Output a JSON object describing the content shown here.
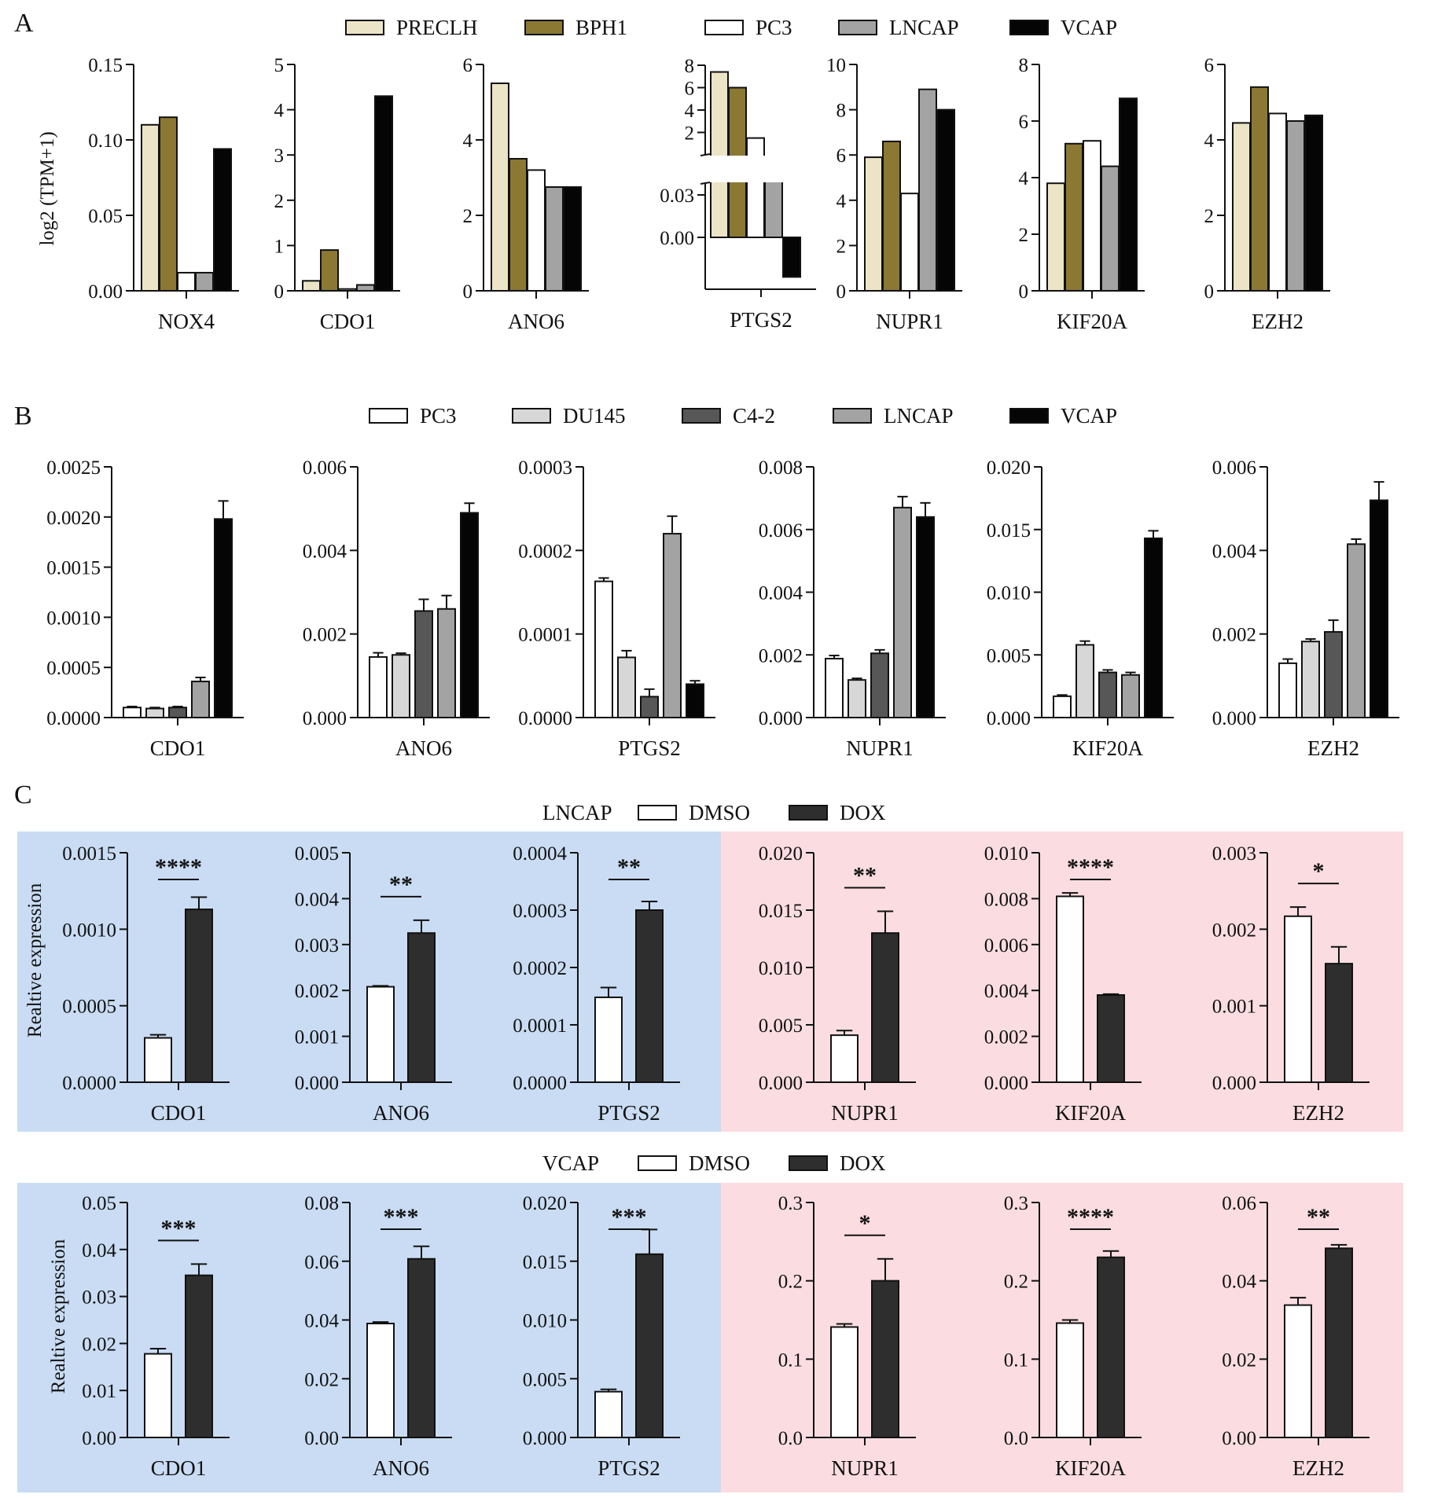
{
  "figure": {
    "panel_letters": [
      "A",
      "B",
      "C"
    ],
    "colors": {
      "PRECLH": "#ece4c6",
      "BPH1": "#8b7833",
      "PC3": "#ffffff",
      "DU145": "#d7d7d7",
      "C4-2": "#575757",
      "LNCAP": "#a3a3a3",
      "VCAP": "#050505",
      "DMSO": "#ffffff",
      "DOX": "#2e2e2e",
      "blue_bg": "#c9dcf3",
      "pink_bg": "#fbdde1"
    }
  },
  "chart_data": [
    {
      "panel": "A",
      "type": "bar",
      "legend": [
        "PRECLH",
        "BPH1",
        "PC3",
        "LNCAP",
        "VCAP"
      ],
      "ylabel": "log2 (TPM+1)",
      "charts": [
        {
          "name": "NOX4",
          "ylim": [
            0,
            0.15
          ],
          "ticks": [
            "0.00",
            "0.05",
            "0.10",
            "0.15"
          ],
          "tick_values": [
            0,
            0.05,
            0.1,
            0.15
          ],
          "values": [
            0.11,
            0.115,
            0.012,
            0.012,
            0.094
          ]
        },
        {
          "name": "CDO1",
          "ylim": [
            0,
            5
          ],
          "ticks": [
            "0",
            "1",
            "2",
            "3",
            "4",
            "5"
          ],
          "tick_values": [
            0,
            1,
            2,
            3,
            4,
            5
          ],
          "values": [
            0.22,
            0.9,
            0.04,
            0.13,
            4.3
          ]
        },
        {
          "name": "ANO6",
          "ylim": [
            0,
            6
          ],
          "ticks": [
            "0",
            "2",
            "4",
            "6"
          ],
          "tick_values": [
            0,
            2,
            4,
            6
          ],
          "values": [
            5.5,
            3.5,
            3.2,
            2.75,
            2.75
          ]
        },
        {
          "name": "PTGS2",
          "broken_axis": true,
          "upper_ticks": [
            "2",
            "4",
            "6",
            "8"
          ],
          "upper_tick_values": [
            2,
            4,
            6,
            8
          ],
          "lower_ticks": [
            "0.00",
            "0.03"
          ],
          "lower_tick_values": [
            0,
            0.03
          ],
          "values": [
            7.4,
            6.0,
            1.5,
            0.04,
            -0.028
          ]
        },
        {
          "name": "NUPR1",
          "ylim": [
            0,
            10
          ],
          "ticks": [
            "0",
            "2",
            "4",
            "6",
            "8",
            "10"
          ],
          "tick_values": [
            0,
            2,
            4,
            6,
            8,
            10
          ],
          "values": [
            5.9,
            6.6,
            4.3,
            8.9,
            8.0
          ]
        },
        {
          "name": "KIF20A",
          "ylim": [
            0,
            8
          ],
          "ticks": [
            "0",
            "2",
            "4",
            "6",
            "8"
          ],
          "tick_values": [
            0,
            2,
            4,
            6,
            8
          ],
          "values": [
            3.8,
            5.2,
            5.3,
            4.4,
            6.8
          ]
        },
        {
          "name": "EZH2",
          "ylim": [
            0,
            6
          ],
          "ticks": [
            "0",
            "2",
            "4",
            "6"
          ],
          "tick_values": [
            0,
            2,
            4,
            6
          ],
          "values": [
            4.45,
            5.4,
            4.7,
            4.5,
            4.65
          ]
        }
      ]
    },
    {
      "panel": "B",
      "type": "bar",
      "legend": [
        "PC3",
        "DU145",
        "C4-2",
        "LNCAP",
        "VCAP"
      ],
      "charts": [
        {
          "name": "CDO1",
          "ylim": [
            0,
            0.0025
          ],
          "ticks": [
            "0.0000",
            "0.0005",
            "0.0010",
            "0.0015",
            "0.0020",
            "0.0025"
          ],
          "tick_values": [
            0,
            0.0005,
            0.001,
            0.0015,
            0.002,
            0.0025
          ],
          "values": [
            0.0001,
            9e-05,
            0.0001,
            0.00036,
            0.00198
          ],
          "errors": [
            1e-05,
            1e-05,
            1e-05,
            4e-05,
            0.00018
          ]
        },
        {
          "name": "ANO6",
          "ylim": [
            0,
            0.006
          ],
          "ticks": [
            "0.000",
            "0.002",
            "0.004",
            "0.006"
          ],
          "tick_values": [
            0,
            0.002,
            0.004,
            0.006
          ],
          "values": [
            0.00145,
            0.0015,
            0.00255,
            0.0026,
            0.0049
          ],
          "errors": [
            0.0001,
            4e-05,
            0.00028,
            0.00032,
            0.00023
          ]
        },
        {
          "name": "PTGS2",
          "ylim": [
            0,
            0.0003
          ],
          "ticks": [
            "0.0000",
            "0.0001",
            "0.0002",
            "0.0003"
          ],
          "tick_values": [
            0,
            0.0001,
            0.0002,
            0.0003
          ],
          "values": [
            0.000163,
            7.2e-05,
            2.5e-05,
            0.00022,
            4e-05
          ],
          "errors": [
            4e-06,
            8e-06,
            9e-06,
            2.1e-05,
            4e-06
          ]
        },
        {
          "name": "NUPR1",
          "ylim": [
            0,
            0.008
          ],
          "ticks": [
            "0.000",
            "0.002",
            "0.004",
            "0.006",
            "0.008"
          ],
          "tick_values": [
            0,
            0.002,
            0.004,
            0.006,
            0.008
          ],
          "values": [
            0.00188,
            0.0012,
            0.00205,
            0.0067,
            0.0064
          ],
          "errors": [
            0.0001,
            5e-05,
            0.00011,
            0.00035,
            0.00045
          ]
        },
        {
          "name": "KIF20A",
          "ylim": [
            0,
            0.02
          ],
          "ticks": [
            "0.000",
            "0.005",
            "0.010",
            "0.015",
            "0.020"
          ],
          "tick_values": [
            0,
            0.005,
            0.01,
            0.015,
            0.02
          ],
          "values": [
            0.0017,
            0.0058,
            0.0036,
            0.0034,
            0.0143
          ],
          "errors": [
            0.0001,
            0.0003,
            0.0002,
            0.0002,
            0.0006
          ]
        },
        {
          "name": "EZH2",
          "ylim": [
            0,
            0.006
          ],
          "ticks": [
            "0.000",
            "0.002",
            "0.004",
            "0.006"
          ],
          "tick_values": [
            0,
            0.002,
            0.004,
            0.006
          ],
          "values": [
            0.0013,
            0.00182,
            0.00205,
            0.00415,
            0.0052
          ],
          "errors": [
            0.0001,
            6e-05,
            0.00028,
            0.00012,
            0.00044
          ]
        }
      ]
    },
    {
      "panel": "C-LNCAP",
      "type": "bar",
      "cell_line": "LNCAP",
      "legend": [
        "DMSO",
        "DOX"
      ],
      "ylabel": "Realtive expression",
      "charts": [
        {
          "name": "CDO1",
          "ylim": [
            0,
            0.0015
          ],
          "ticks": [
            "0.0000",
            "0.0005",
            "0.0010",
            "0.0015"
          ],
          "tick_values": [
            0,
            0.0005,
            0.001,
            0.0015
          ],
          "values": [
            0.00029,
            0.00113
          ],
          "errors": [
            2e-05,
            8e-05
          ],
          "significance": "****"
        },
        {
          "name": "ANO6",
          "ylim": [
            0,
            0.005
          ],
          "ticks": [
            "0.000",
            "0.001",
            "0.002",
            "0.003",
            "0.004",
            "0.005"
          ],
          "tick_values": [
            0,
            0.001,
            0.002,
            0.003,
            0.004,
            0.005
          ],
          "values": [
            0.00208,
            0.00325
          ],
          "errors": [
            2e-05,
            0.00028
          ],
          "significance": "**"
        },
        {
          "name": "PTGS2",
          "ylim": [
            0,
            0.0004
          ],
          "ticks": [
            "0.0000",
            "0.0001",
            "0.0002",
            "0.0003",
            "0.0004"
          ],
          "tick_values": [
            0,
            0.0001,
            0.0002,
            0.0003,
            0.0004
          ],
          "values": [
            0.000148,
            0.0003
          ],
          "errors": [
            1.7e-05,
            1.5e-05
          ],
          "significance": "**"
        },
        {
          "name": "NUPR1",
          "ylim": [
            0,
            0.02
          ],
          "ticks": [
            "0.000",
            "0.005",
            "0.010",
            "0.015",
            "0.020"
          ],
          "tick_values": [
            0,
            0.005,
            0.01,
            0.015,
            0.02
          ],
          "values": [
            0.0041,
            0.013
          ],
          "errors": [
            0.0004,
            0.0019
          ],
          "significance": "**"
        },
        {
          "name": "KIF20A",
          "ylim": [
            0,
            0.01
          ],
          "ticks": [
            "0.000",
            "0.002",
            "0.004",
            "0.006",
            "0.008",
            "0.010"
          ],
          "tick_values": [
            0,
            0.002,
            0.004,
            0.006,
            0.008,
            0.01
          ],
          "values": [
            0.0081,
            0.0038
          ],
          "errors": [
            0.00015,
            4e-05
          ],
          "significance": "****"
        },
        {
          "name": "EZH2",
          "ylim": [
            0,
            0.003
          ],
          "ticks": [
            "0.000",
            "0.001",
            "0.002",
            "0.003"
          ],
          "tick_values": [
            0,
            0.001,
            0.002,
            0.003
          ],
          "values": [
            0.00217,
            0.00155
          ],
          "errors": [
            0.00012,
            0.00022
          ],
          "significance": "*"
        }
      ]
    },
    {
      "panel": "C-VCAP",
      "type": "bar",
      "cell_line": "VCAP",
      "legend": [
        "DMSO",
        "DOX"
      ],
      "ylabel": "Realtive expression",
      "charts": [
        {
          "name": "CDO1",
          "ylim": [
            0,
            0.05
          ],
          "ticks": [
            "0.00",
            "0.01",
            "0.02",
            "0.03",
            "0.04",
            "0.05"
          ],
          "tick_values": [
            0,
            0.01,
            0.02,
            0.03,
            0.04,
            0.05
          ],
          "values": [
            0.0178,
            0.0345
          ],
          "errors": [
            0.0011,
            0.0024
          ],
          "significance": "***"
        },
        {
          "name": "ANO6",
          "ylim": [
            0,
            0.08
          ],
          "ticks": [
            "0.00",
            "0.02",
            "0.04",
            "0.06",
            "0.08"
          ],
          "tick_values": [
            0,
            0.02,
            0.04,
            0.06,
            0.08
          ],
          "values": [
            0.0388,
            0.0608
          ],
          "errors": [
            0.0005,
            0.0043
          ],
          "significance": "***"
        },
        {
          "name": "PTGS2",
          "ylim": [
            0,
            0.02
          ],
          "ticks": [
            "0.000",
            "0.005",
            "0.010",
            "0.015",
            "0.020"
          ],
          "tick_values": [
            0,
            0.005,
            0.01,
            0.015,
            0.02
          ],
          "values": [
            0.0039,
            0.0156
          ],
          "errors": [
            0.0002,
            0.0021
          ],
          "significance": "***"
        },
        {
          "name": "NUPR1",
          "ylim": [
            0,
            0.3
          ],
          "ticks": [
            "0.0",
            "0.1",
            "0.2",
            "0.3"
          ],
          "tick_values": [
            0,
            0.1,
            0.2,
            0.3
          ],
          "values": [
            0.141,
            0.2
          ],
          "errors": [
            0.004,
            0.028
          ],
          "significance": "*"
        },
        {
          "name": "KIF20A",
          "ylim": [
            0,
            0.3
          ],
          "ticks": [
            "0.0",
            "0.1",
            "0.2",
            "0.3"
          ],
          "tick_values": [
            0,
            0.1,
            0.2,
            0.3
          ],
          "values": [
            0.146,
            0.23
          ],
          "errors": [
            0.004,
            0.008
          ],
          "significance": "****"
        },
        {
          "name": "EZH2",
          "ylim": [
            0,
            0.06
          ],
          "ticks": [
            "0.00",
            "0.02",
            "0.04",
            "0.06"
          ],
          "tick_values": [
            0,
            0.02,
            0.04,
            0.06
          ],
          "values": [
            0.0338,
            0.0483
          ],
          "errors": [
            0.0019,
            0.0009
          ],
          "significance": "**"
        }
      ]
    }
  ]
}
